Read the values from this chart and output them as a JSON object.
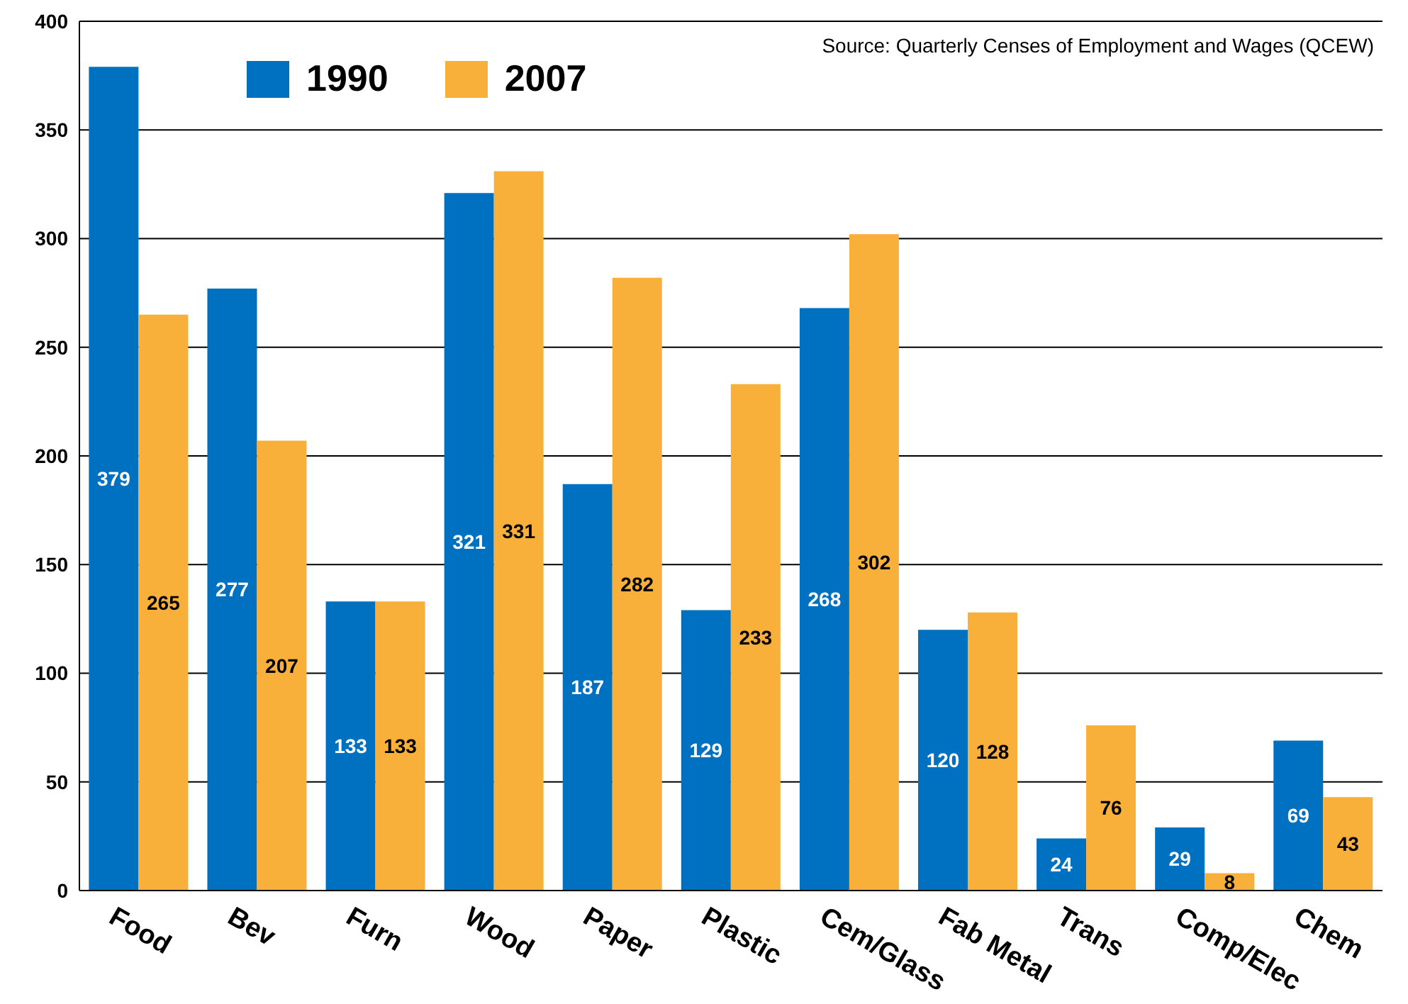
{
  "chart_data": {
    "type": "bar",
    "categories": [
      "Food",
      "Bev",
      "Furn",
      "Wood",
      "Paper",
      "Plastic",
      "Cem/Glass",
      "Fab Metal",
      "Trans",
      "Comp/Elec",
      "Chem"
    ],
    "series": [
      {
        "name": "1990",
        "color": "#0070c0",
        "values": [
          379,
          277,
          133,
          321,
          187,
          129,
          268,
          120,
          24,
          29,
          69
        ]
      },
      {
        "name": "2007",
        "color": "#f9b03a",
        "values": [
          265,
          207,
          133,
          331,
          282,
          233,
          302,
          128,
          76,
          8,
          43
        ]
      }
    ],
    "ylim": [
      0,
      400
    ],
    "yticks": [
      0,
      50,
      100,
      150,
      200,
      250,
      300,
      350,
      400
    ],
    "grid": "y",
    "legend": "top left",
    "data_labels": true,
    "annotations": [
      "Source: Quarterly Censes of Employment and Wages (QCEW)"
    ]
  }
}
